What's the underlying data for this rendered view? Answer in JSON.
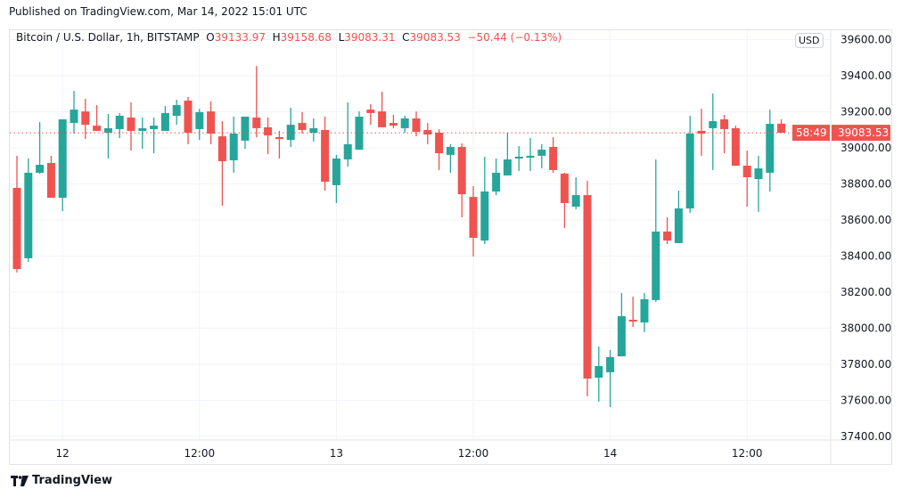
{
  "published": "Published on TradingView.com, Mar 14, 2022 15:01 UTC",
  "legend": {
    "symbol": "Bitcoin / U.S. Dollar, 1h, BITSTAMP",
    "o_label": "O",
    "o": "39133.97",
    "h_label": "H",
    "h": "39158.68",
    "l_label": "L",
    "l": "39083.31",
    "c_label": "C",
    "c": "39083.53",
    "change": "−50.44 (−0.13%)"
  },
  "currency_badge": "USD",
  "last_price_label": {
    "price": "39083.53",
    "countdown": "58:49"
  },
  "footer": {
    "brand": "TradingView"
  },
  "colors": {
    "up": "#26a69a",
    "down": "#ef5350",
    "grid": "#f0f3fa",
    "last_price": "#ef5350"
  },
  "chart_data": {
    "type": "candlestick",
    "interval": "1h",
    "first_candle": "2022-03-11 19:00",
    "ylim": [
      37400,
      39600
    ],
    "grid": true,
    "y_ticks": [
      "39600.00",
      "39400.00",
      "39200.00",
      "39000.00",
      "38800.00",
      "38600.00",
      "38400.00",
      "38200.00",
      "38000.00",
      "37800.00",
      "37600.00",
      "37400.00"
    ],
    "x_ticks": [
      {
        "label": "12",
        "index": 5
      },
      {
        "label": "12:00",
        "index": 17
      },
      {
        "label": "13",
        "index": 29
      },
      {
        "label": "12:00",
        "index": 41
      },
      {
        "label": "14",
        "index": 53
      },
      {
        "label": "12:00",
        "index": 65
      }
    ],
    "last_price": 39083.53,
    "ohlc": [
      [
        38595,
        38788,
        38595,
        38788
      ],
      [
        38778,
        38956,
        38309,
        38328
      ],
      [
        38388,
        38941,
        38368,
        38862
      ],
      [
        38862,
        39143,
        38857,
        38906
      ],
      [
        38916,
        38956,
        38723,
        38723
      ],
      [
        38723,
        39158,
        38649,
        39158
      ],
      [
        39138,
        39316,
        39079,
        39212
      ],
      [
        39202,
        39272,
        39049,
        39128
      ],
      [
        39123,
        39237,
        39094,
        39094
      ],
      [
        39084,
        39188,
        38941,
        39109
      ],
      [
        39104,
        39193,
        39054,
        39178
      ],
      [
        39168,
        39252,
        38985,
        39094
      ],
      [
        39094,
        39168,
        38995,
        39109
      ],
      [
        39104,
        39168,
        38970,
        39123
      ],
      [
        39094,
        39232,
        39094,
        39193
      ],
      [
        39178,
        39267,
        39128,
        39237
      ],
      [
        39262,
        39281,
        39020,
        39084
      ],
      [
        39104,
        39217,
        39044,
        39198
      ],
      [
        39202,
        39257,
        39020,
        39079
      ],
      [
        39064,
        39148,
        38679,
        38926
      ],
      [
        38931,
        39173,
        38862,
        39079
      ],
      [
        39040,
        39173,
        38995,
        39173
      ],
      [
        39168,
        39454,
        39059,
        39109
      ],
      [
        39114,
        39168,
        38965,
        39069
      ],
      [
        39059,
        39094,
        38941,
        39049
      ],
      [
        39044,
        39222,
        39005,
        39128
      ],
      [
        39138,
        39198,
        39079,
        39099
      ],
      [
        39084,
        39163,
        39035,
        39109
      ],
      [
        39099,
        39173,
        38763,
        38812
      ],
      [
        38793,
        38961,
        38694,
        38941
      ],
      [
        38936,
        39252,
        38896,
        39020
      ],
      [
        38990,
        39202,
        38990,
        39173
      ],
      [
        39212,
        39242,
        39128,
        39193
      ],
      [
        39202,
        39311,
        39114,
        39114
      ],
      [
        39138,
        39183,
        39109,
        39123
      ],
      [
        39109,
        39178,
        39084,
        39163
      ],
      [
        39163,
        39202,
        39064,
        39089
      ],
      [
        39099,
        39138,
        39020,
        39074
      ],
      [
        39084,
        39104,
        38877,
        38970
      ],
      [
        38961,
        39020,
        38862,
        39005
      ],
      [
        39005,
        39025,
        38615,
        38743
      ],
      [
        38728,
        38788,
        38398,
        38501
      ],
      [
        38486,
        38951,
        38467,
        38758
      ],
      [
        38758,
        38941,
        38738,
        38862
      ],
      [
        38847,
        39084,
        38847,
        38936
      ],
      [
        38941,
        39010,
        38872,
        38951
      ],
      [
        38946,
        39054,
        38872,
        38956
      ],
      [
        38956,
        39020,
        38886,
        38990
      ],
      [
        39005,
        39059,
        38862,
        38877
      ],
      [
        38857,
        38862,
        38556,
        38694
      ],
      [
        38674,
        38837,
        38659,
        38738
      ],
      [
        38738,
        38817,
        37622,
        37721
      ],
      [
        37726,
        37899,
        37593,
        37790
      ],
      [
        37756,
        37879,
        37563,
        37840
      ],
      [
        37844,
        38195,
        37844,
        38067
      ],
      [
        38047,
        38175,
        38007,
        38037
      ],
      [
        38032,
        38195,
        37978,
        38161
      ],
      [
        38156,
        38936,
        38146,
        38536
      ],
      [
        38536,
        38615,
        38467,
        38486
      ],
      [
        38472,
        38763,
        38472,
        38664
      ],
      [
        38664,
        39178,
        38640,
        39079
      ],
      [
        39094,
        39217,
        38956,
        39079
      ],
      [
        39109,
        39301,
        38877,
        39148
      ],
      [
        39158,
        39183,
        38970,
        39104
      ],
      [
        39109,
        39123,
        38901,
        38901
      ],
      [
        38901,
        38985,
        38674,
        38837
      ],
      [
        38827,
        38956,
        38645,
        38886
      ],
      [
        38862,
        39212,
        38758,
        39133
      ],
      [
        39133.97,
        39158.68,
        39083.31,
        39083.53
      ]
    ]
  }
}
